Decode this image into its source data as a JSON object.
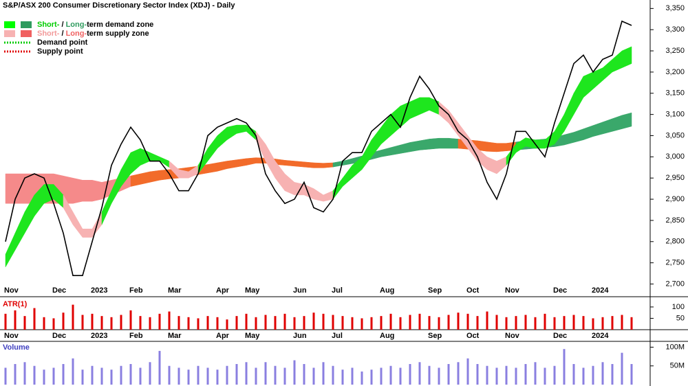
{
  "chart_data": [
    {
      "type": "line",
      "title": "S&P/ASX 200 Consumer Discretionary Sector Index (XDJ) - Daily",
      "categories": [
        "Nov",
        null,
        null,
        null,
        null,
        "Dec",
        null,
        null,
        null,
        "2023",
        null,
        null,
        null,
        "Feb",
        null,
        null,
        null,
        "Mar",
        null,
        null,
        null,
        null,
        "Apr",
        null,
        null,
        "May",
        null,
        null,
        null,
        null,
        "Jun",
        null,
        null,
        null,
        "Jul",
        null,
        null,
        null,
        null,
        "Aug",
        null,
        null,
        null,
        null,
        "Sep",
        null,
        null,
        null,
        "Oct",
        null,
        null,
        null,
        "Nov",
        null,
        null,
        null,
        null,
        "Dec",
        null,
        null,
        null,
        "2024",
        null,
        null,
        null,
        null
      ],
      "values": [
        2800,
        2900,
        2950,
        2960,
        2950,
        2890,
        2820,
        2720,
        2720,
        2800,
        2880,
        2980,
        3030,
        3070,
        3040,
        2990,
        2990,
        2960,
        2920,
        2920,
        2960,
        3050,
        3070,
        3080,
        3090,
        3080,
        3050,
        2960,
        2920,
        2890,
        2900,
        2940,
        2880,
        2870,
        2900,
        2990,
        3010,
        3010,
        3060,
        3080,
        3100,
        3070,
        3140,
        3190,
        3160,
        3120,
        3100,
        3060,
        3040,
        3000,
        2940,
        2900,
        2960,
        3060,
        3060,
        3030,
        3000,
        3080,
        3150,
        3220,
        3240,
        3200,
        3230,
        3240,
        3320,
        3310
      ],
      "color": "#000000",
      "zones": [
        {
          "upper": [
            2770,
            2820,
            2870,
            2910,
            2935,
            2935,
            2910,
            2870,
            2830,
            2830,
            2870,
            2920,
            2970,
            3010,
            3020,
            3010,
            3000,
            2990,
            2970,
            2965,
            2980,
            3020,
            3050,
            3070,
            3075,
            3075,
            3060,
            3030,
            2990,
            2960,
            2940,
            2935,
            2925,
            2910,
            2920,
            2950,
            2980,
            3000,
            3040,
            3070,
            3100,
            3120,
            3130,
            3140,
            3140,
            3130,
            3110,
            3080,
            3050,
            3020,
            3000,
            2990,
            3000,
            3030,
            3045,
            3040,
            3040,
            3060,
            3100,
            3150,
            3190,
            3200,
            3210,
            3230,
            3250,
            3260
          ],
          "lower": [
            2740,
            2780,
            2820,
            2860,
            2890,
            2900,
            2880,
            2840,
            2810,
            2810,
            2840,
            2890,
            2930,
            2960,
            2980,
            2990,
            2990,
            2975,
            2950,
            2950,
            2960,
            2990,
            3020,
            3040,
            3055,
            3060,
            3040,
            2990,
            2950,
            2920,
            2910,
            2910,
            2900,
            2895,
            2900,
            2930,
            2950,
            2970,
            3000,
            3030,
            3050,
            3070,
            3090,
            3100,
            3110,
            3100,
            3080,
            3050,
            3020,
            2990,
            2970,
            2960,
            2980,
            3010,
            3025,
            3020,
            3020,
            3030,
            3060,
            3100,
            3140,
            3160,
            3180,
            3200,
            3210,
            3220
          ],
          "colors": [
            "#1ee61e",
            "#1ee61e",
            "#1ee61e",
            "#1ee61e",
            "#1ee61e",
            "#1ee61e",
            "#f7b2b2",
            "#f7b2b2",
            "#f7b2b2",
            "#f7b2b2",
            "#1ee61e",
            "#1ee61e",
            "#1ee61e",
            "#1ee61e",
            "#1ee61e",
            "#1ee61e",
            "#1ee61e",
            "#f7b2b2",
            "#f7b2b2",
            "#f7b2b2",
            "#1ee61e",
            "#1ee61e",
            "#1ee61e",
            "#1ee61e",
            "#1ee61e",
            "#1ee61e",
            "#f7b2b2",
            "#f7b2b2",
            "#f7b2b2",
            "#f7b2b2",
            "#f7b2b2",
            "#f7b2b2",
            "#f7b2b2",
            "#f7b2b2",
            "#1ee61e",
            "#1ee61e",
            "#1ee61e",
            "#1ee61e",
            "#1ee61e",
            "#1ee61e",
            "#1ee61e",
            "#1ee61e",
            "#1ee61e",
            "#1ee61e",
            "#1ee61e",
            "#f7b2b2",
            "#f7b2b2",
            "#f7b2b2",
            "#f7b2b2",
            "#f7b2b2",
            "#f7b2b2",
            "#f7b2b2",
            "#1ee61e",
            "#1ee61e",
            "#1ee61e",
            "#1ee61e",
            "#1ee61e",
            "#1ee61e",
            "#1ee61e",
            "#1ee61e",
            "#1ee61e",
            "#1ee61e",
            "#1ee61e",
            "#1ee61e",
            "#1ee61e",
            "#1ee61e"
          ]
        },
        {
          "upper": [
            2960,
            2960,
            2960,
            2960,
            2960,
            2960,
            2955,
            2950,
            2945,
            2945,
            2940,
            2945,
            2950,
            2955,
            2960,
            2965,
            2968,
            2970,
            2972,
            2975,
            2978,
            2982,
            2986,
            2990,
            2993,
            2996,
            2998,
            2997,
            2995,
            2992,
            2990,
            2988,
            2986,
            2985,
            2986,
            2990,
            2996,
            3002,
            3010,
            3016,
            3022,
            3028,
            3034,
            3038,
            3042,
            3044,
            3044,
            3042,
            3040,
            3038,
            3035,
            3032,
            3032,
            3035,
            3038,
            3040,
            3042,
            3046,
            3052,
            3058,
            3066,
            3074,
            3082,
            3090,
            3098,
            3104
          ],
          "lower": [
            2890,
            2890,
            2890,
            2890,
            2890,
            2890,
            2890,
            2890,
            2895,
            2895,
            2900,
            2910,
            2920,
            2930,
            2935,
            2940,
            2945,
            2948,
            2950,
            2955,
            2958,
            2962,
            2966,
            2972,
            2976,
            2980,
            2985,
            2985,
            2982,
            2980,
            2978,
            2976,
            2974,
            2974,
            2976,
            2980,
            2984,
            2988,
            2994,
            3000,
            3004,
            3008,
            3012,
            3016,
            3018,
            3020,
            3020,
            3020,
            3018,
            3016,
            3013,
            3012,
            3014,
            3016,
            3018,
            3020,
            3022,
            3024,
            3028,
            3034,
            3040,
            3048,
            3054,
            3060,
            3066,
            3072
          ],
          "colors": [
            "#f58a8a",
            "#f58a8a",
            "#f58a8a",
            "#f58a8a",
            "#f58a8a",
            "#f58a8a",
            "#f58a8a",
            "#f58a8a",
            "#f58a8a",
            "#f58a8a",
            "#f58a8a",
            "#f58a8a",
            "#f58a8a",
            "#f26b2a",
            "#f26b2a",
            "#f26b2a",
            "#f26b2a",
            "#f26b2a",
            "#f26b2a",
            "#f26b2a",
            "#f26b2a",
            "#f26b2a",
            "#f26b2a",
            "#f26b2a",
            "#f26b2a",
            "#f26b2a",
            "#f26b2a",
            "#f26b2a",
            "#f26b2a",
            "#f26b2a",
            "#f26b2a",
            "#f26b2a",
            "#f26b2a",
            "#f26b2a",
            "#3aa86b",
            "#3aa86b",
            "#3aa86b",
            "#3aa86b",
            "#3aa86b",
            "#3aa86b",
            "#3aa86b",
            "#3aa86b",
            "#3aa86b",
            "#3aa86b",
            "#3aa86b",
            "#3aa86b",
            "#3aa86b",
            "#f26b2a",
            "#f26b2a",
            "#f26b2a",
            "#f26b2a",
            "#f26b2a",
            "#f26b2a",
            "#3aa86b",
            "#3aa86b",
            "#3aa86b",
            "#3aa86b",
            "#3aa86b",
            "#3aa86b",
            "#3aa86b",
            "#3aa86b",
            "#3aa86b",
            "#3aa86b",
            "#3aa86b",
            "#3aa86b",
            "#3aa86b"
          ]
        }
      ],
      "legend": [
        {
          "swatches": [
            "#00ff00",
            "#2e9b5e"
          ],
          "parts": [
            {
              "text": "Short-",
              "color": "#00cc00"
            },
            {
              "text": " / ",
              "color": "#000000"
            },
            {
              "text": "Long-",
              "color": "#2e9b5e"
            },
            {
              "text": "term demand zone",
              "color": "#000000"
            }
          ]
        },
        {
          "swatches": [
            "#f7b2b2",
            "#f06060"
          ],
          "parts": [
            {
              "text": "Short-",
              "color": "#f29a9a"
            },
            {
              "text": " / ",
              "color": "#000000"
            },
            {
              "text": "Long-",
              "color": "#f06060"
            },
            {
              "text": "term supply zone",
              "color": "#000000"
            }
          ]
        },
        {
          "dotted": "#00cc00",
          "parts": [
            {
              "text": "Demand point",
              "color": "#000000"
            }
          ]
        },
        {
          "dotted": "#e00000",
          "parts": [
            {
              "text": "Supply point",
              "color": "#000000"
            }
          ]
        }
      ],
      "ylim": [
        2670,
        3370
      ],
      "yticks": [
        {
          "value": 2700,
          "label": "2,700"
        },
        {
          "value": 2750,
          "label": "2,750"
        },
        {
          "value": 2800,
          "label": "2,800"
        },
        {
          "value": 2850,
          "label": "2,850"
        },
        {
          "value": 2900,
          "label": "2,900"
        },
        {
          "value": 2950,
          "label": "2,950"
        },
        {
          "value": 3000,
          "label": "3,000"
        },
        {
          "value": 3050,
          "label": "3,050"
        },
        {
          "value": 3100,
          "label": "3,100"
        },
        {
          "value": 3150,
          "label": "3,150"
        },
        {
          "value": 3200,
          "label": "3,200"
        },
        {
          "value": 3250,
          "label": "3,250"
        },
        {
          "value": 3300,
          "label": "3,300"
        },
        {
          "value": 3350,
          "label": "3,350"
        }
      ]
    },
    {
      "type": "bar",
      "title": "ATR(1)",
      "title_color": "#e00000",
      "color": "#e00000",
      "values": [
        70,
        85,
        60,
        95,
        55,
        50,
        75,
        110,
        65,
        70,
        60,
        55,
        65,
        85,
        60,
        55,
        70,
        80,
        60,
        55,
        50,
        60,
        55,
        45,
        60,
        70,
        55,
        65,
        60,
        70,
        55,
        60,
        75,
        70,
        65,
        60,
        55,
        50,
        55,
        60,
        70,
        55,
        65,
        70,
        60,
        55,
        65,
        75,
        70,
        60,
        80,
        65,
        55,
        60,
        65,
        55,
        70,
        55,
        60,
        65,
        60,
        50,
        55,
        60,
        65,
        55
      ],
      "ylim": [
        0,
        130
      ],
      "yticks": [
        50,
        100
      ]
    },
    {
      "type": "bar",
      "title": "Volume",
      "title_color": "#4040c0",
      "color": "#8a7fe0",
      "values": [
        45000000,
        55000000,
        60000000,
        50000000,
        40000000,
        45000000,
        55000000,
        70000000,
        40000000,
        50000000,
        45000000,
        40000000,
        50000000,
        55000000,
        45000000,
        60000000,
        90000000,
        50000000,
        45000000,
        40000000,
        50000000,
        45000000,
        40000000,
        50000000,
        55000000,
        60000000,
        45000000,
        60000000,
        50000000,
        45000000,
        65000000,
        55000000,
        45000000,
        60000000,
        50000000,
        40000000,
        45000000,
        35000000,
        40000000,
        45000000,
        50000000,
        45000000,
        55000000,
        60000000,
        50000000,
        45000000,
        55000000,
        60000000,
        70000000,
        55000000,
        50000000,
        45000000,
        50000000,
        45000000,
        55000000,
        60000000,
        45000000,
        50000000,
        95000000,
        55000000,
        45000000,
        50000000,
        60000000,
        55000000,
        85000000,
        55000000
      ],
      "ylim": [
        0,
        110000000
      ],
      "yticks": [
        {
          "value": 50000000,
          "label": "50M"
        },
        {
          "value": 100000000,
          "label": "100M"
        }
      ]
    }
  ]
}
